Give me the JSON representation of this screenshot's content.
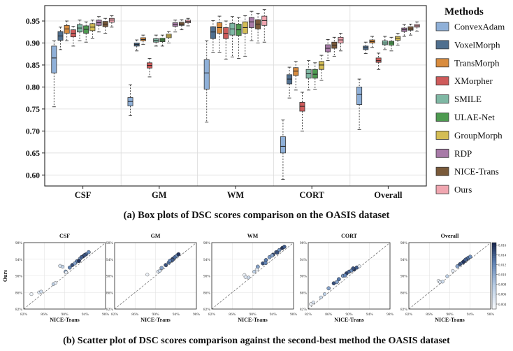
{
  "figure": {
    "caption_a": "(a) Box plots of DSC scores comparison on the OASIS dataset",
    "caption_b": "(b) Scatter plot of DSC scores  comparison  against the second-best method the OASIS dataset"
  },
  "chart_data": [
    {
      "type": "box",
      "categories": [
        "CSF",
        "GM",
        "WM",
        "CORT",
        "Overall"
      ],
      "ylim": [
        0.575,
        0.985
      ],
      "yticks": [
        0.6,
        0.65,
        0.7,
        0.75,
        0.8,
        0.85,
        0.9,
        0.95
      ],
      "ytick_labels": [
        "0.60",
        "0.65",
        "0.70",
        "0.75",
        "0.80",
        "0.85",
        "0.90",
        "0.95"
      ],
      "grid": true,
      "legend": {
        "title": "Methods",
        "placement": "right"
      },
      "series": [
        {
          "name": "ConvexAdam",
          "color": "#8fb0d8",
          "stats": [
            [
              0.755,
              0.832,
              0.866,
              0.893,
              0.905
            ],
            [
              0.735,
              0.757,
              0.767,
              0.776,
              0.805
            ],
            [
              0.72,
              0.795,
              0.832,
              0.862,
              0.905
            ],
            [
              0.59,
              0.65,
              0.665,
              0.687,
              0.725
            ],
            [
              0.703,
              0.76,
              0.783,
              0.8,
              0.818
            ]
          ]
        },
        {
          "name": "VoxelMorph",
          "color": "#4f6f8f",
          "stats": [
            [
              0.885,
              0.906,
              0.916,
              0.926,
              0.936
            ],
            [
              0.882,
              0.893,
              0.897,
              0.9,
              0.907
            ],
            [
              0.878,
              0.91,
              0.925,
              0.937,
              0.951
            ],
            [
              0.775,
              0.807,
              0.818,
              0.828,
              0.845
            ],
            [
              0.876,
              0.885,
              0.889,
              0.893,
              0.902
            ]
          ]
        },
        {
          "name": "TransMorph",
          "color": "#d98c3e",
          "stats": [
            [
              0.905,
              0.922,
              0.932,
              0.94,
              0.95
            ],
            [
              0.897,
              0.905,
              0.908,
              0.912,
              0.918
            ],
            [
              0.878,
              0.922,
              0.935,
              0.946,
              0.961
            ],
            [
              0.793,
              0.826,
              0.836,
              0.844,
              0.858
            ],
            [
              0.89,
              0.9,
              0.903,
              0.907,
              0.915
            ]
          ]
        },
        {
          "name": "XMorpher",
          "color": "#cf5b5b",
          "stats": [
            [
              0.893,
              0.914,
              0.922,
              0.93,
              0.938
            ],
            [
              0.823,
              0.843,
              0.849,
              0.855,
              0.865
            ],
            [
              0.863,
              0.91,
              0.922,
              0.935,
              0.95
            ],
            [
              0.7,
              0.745,
              0.756,
              0.765,
              0.788
            ],
            [
              0.84,
              0.856,
              0.86,
              0.866,
              0.877
            ]
          ]
        },
        {
          "name": "SMILE",
          "color": "#7fb8a4",
          "stats": [
            [
              0.905,
              0.925,
              0.934,
              0.942,
              0.952
            ],
            [
              0.893,
              0.902,
              0.906,
              0.91,
              0.918
            ],
            [
              0.868,
              0.918,
              0.932,
              0.945,
              0.96
            ],
            [
              0.793,
              0.82,
              0.83,
              0.84,
              0.86
            ],
            [
              0.885,
              0.896,
              0.9,
              0.905,
              0.915
            ]
          ]
        },
        {
          "name": "ULAE-Net",
          "color": "#4d9a50",
          "stats": [
            [
              0.902,
              0.922,
              0.931,
              0.939,
              0.948
            ],
            [
              0.893,
              0.903,
              0.907,
              0.911,
              0.918
            ],
            [
              0.865,
              0.917,
              0.93,
              0.943,
              0.958
            ],
            [
              0.795,
              0.82,
              0.829,
              0.84,
              0.855
            ],
            [
              0.882,
              0.895,
              0.9,
              0.904,
              0.913
            ]
          ]
        },
        {
          "name": "GroupMorph",
          "color": "#d4bd55",
          "stats": [
            [
              0.91,
              0.928,
              0.936,
              0.944,
              0.952
            ],
            [
              0.9,
              0.912,
              0.916,
              0.92,
              0.926
            ],
            [
              0.87,
              0.922,
              0.935,
              0.948,
              0.962
            ],
            [
              0.815,
              0.84,
              0.85,
              0.858,
              0.872
            ],
            [
              0.895,
              0.906,
              0.911,
              0.915,
              0.922
            ]
          ]
        },
        {
          "name": "RDP",
          "color": "#a87aa8",
          "stats": [
            [
              0.925,
              0.94,
              0.946,
              0.952,
              0.96
            ],
            [
              0.925,
              0.938,
              0.942,
              0.946,
              0.952
            ],
            [
              0.905,
              0.935,
              0.948,
              0.958,
              0.972
            ],
            [
              0.86,
              0.88,
              0.888,
              0.896,
              0.908
            ],
            [
              0.915,
              0.926,
              0.93,
              0.934,
              0.942
            ]
          ]
        },
        {
          "name": "NICE-Trans",
          "color": "#7a5a3a",
          "stats": [
            [
              0.922,
              0.937,
              0.943,
              0.949,
              0.956
            ],
            [
              0.93,
              0.94,
              0.943,
              0.947,
              0.953
            ],
            [
              0.9,
              0.932,
              0.943,
              0.953,
              0.967
            ],
            [
              0.87,
              0.888,
              0.895,
              0.902,
              0.913
            ],
            [
              0.918,
              0.929,
              0.932,
              0.937,
              0.943
            ]
          ]
        },
        {
          "name": "Ours",
          "color": "#f0a6b0",
          "stats": [
            [
              0.936,
              0.947,
              0.952,
              0.956,
              0.962
            ],
            [
              0.939,
              0.946,
              0.949,
              0.952,
              0.956
            ],
            [
              0.902,
              0.94,
              0.951,
              0.961,
              0.976
            ],
            [
              0.882,
              0.9,
              0.907,
              0.913,
              0.922
            ],
            [
              0.927,
              0.936,
              0.939,
              0.942,
              0.948
            ]
          ]
        }
      ]
    },
    {
      "type": "scatter",
      "xlabel": "NICE-Trans",
      "ylabel": "Ours",
      "xlim": [
        82,
        98
      ],
      "ylim": [
        82,
        98
      ],
      "ticks": [
        82,
        86,
        90,
        94,
        98
      ],
      "tick_labels": [
        "82%",
        "86%",
        "90%",
        "94%",
        "98%"
      ],
      "colorbar": {
        "min": 0.003,
        "max": 0.0165,
        "ticks": [
          0.004,
          0.006,
          0.008,
          0.01,
          0.012,
          0.014,
          0.016
        ],
        "tick_labels": [
          "0.004",
          "0.006",
          "0.008",
          "0.010",
          "0.012",
          "0.014",
          "0.016"
        ]
      },
      "panels": [
        {
          "title": "CSF",
          "cluster": [
            [
              90.2,
              91.0
            ],
            [
              91.5,
              92.6
            ],
            [
              92.4,
              93.5
            ],
            [
              93.0,
              94.1
            ],
            [
              93.6,
              94.7
            ],
            [
              94.2,
              95.2
            ],
            [
              94.7,
              95.7
            ],
            [
              92.8,
              93.6
            ],
            [
              93.3,
              94.5
            ],
            [
              91.0,
              92.0
            ],
            [
              92.0,
              93.0
            ],
            [
              93.9,
              95.0
            ]
          ],
          "outliers": [
            [
              83.5,
              85.6
            ],
            [
              85.0,
              86.0
            ],
            [
              85.4,
              86.2
            ],
            [
              87.8,
              88.0
            ],
            [
              88.2,
              88.3
            ],
            [
              89.1,
              92.4
            ],
            [
              89.6,
              92.2
            ],
            [
              90.3,
              90.8
            ]
          ]
        },
        {
          "title": "GM",
          "cluster": [
            [
              91.2,
              91.9
            ],
            [
              92.0,
              92.6
            ],
            [
              92.6,
              93.2
            ],
            [
              93.0,
              93.7
            ],
            [
              93.4,
              94.1
            ],
            [
              93.8,
              94.5
            ],
            [
              94.2,
              94.9
            ],
            [
              94.5,
              95.2
            ],
            [
              93.3,
              93.8
            ],
            [
              92.8,
              93.6
            ]
          ],
          "outliers": [
            [
              88.4,
              90.3
            ],
            [
              90.5,
              91.0
            ],
            [
              90.8,
              91.2
            ]
          ]
        },
        {
          "title": "WM",
          "cluster": [
            [
              91.0,
              92.2
            ],
            [
              92.0,
              93.0
            ],
            [
              92.6,
              93.8
            ],
            [
              93.3,
              94.5
            ],
            [
              94.0,
              95.1
            ],
            [
              94.6,
              95.7
            ],
            [
              95.2,
              96.2
            ],
            [
              95.8,
              96.7
            ],
            [
              96.2,
              97.0
            ],
            [
              92.5,
              93.1
            ],
            [
              93.8,
              94.9
            ],
            [
              94.8,
              95.6
            ]
          ],
          "outliers": [
            [
              88.4,
              90.2
            ],
            [
              88.6,
              89.7
            ],
            [
              89.2,
              89.6
            ],
            [
              90.3,
              91.0
            ],
            [
              90.8,
              91.5
            ]
          ]
        },
        {
          "title": "CORT",
          "cluster": [
            [
              86.0,
              87.0
            ],
            [
              87.0,
              88.2
            ],
            [
              88.0,
              89.2
            ],
            [
              88.8,
              90.0
            ],
            [
              89.5,
              90.6
            ],
            [
              90.0,
              91.0
            ],
            [
              90.5,
              91.3
            ],
            [
              91.0,
              91.6
            ],
            [
              91.5,
              92.0
            ],
            [
              89.2,
              90.1
            ],
            [
              87.6,
              88.5
            ],
            [
              90.8,
              91.8
            ]
          ],
          "outliers": [
            [
              82.5,
              83.2
            ],
            [
              83.0,
              83.6
            ],
            [
              84.5,
              84.8
            ],
            [
              85.2,
              85.6
            ],
            [
              92.0,
              92.3
            ]
          ]
        },
        {
          "title": "Overall",
          "cluster": [
            [
              91.5,
              92.3
            ],
            [
              92.0,
              92.8
            ],
            [
              92.5,
              93.2
            ],
            [
              92.9,
              93.6
            ],
            [
              93.3,
              94.0
            ],
            [
              93.6,
              94.3
            ],
            [
              94.0,
              94.6
            ],
            [
              92.7,
              93.4
            ],
            [
              93.1,
              93.9
            ]
          ],
          "outliers": [
            [
              87.8,
              88.8
            ],
            [
              88.1,
              88.5
            ],
            [
              88.6,
              88.6
            ],
            [
              89.5,
              89.9
            ],
            [
              90.6,
              91.2
            ]
          ]
        }
      ]
    }
  ]
}
